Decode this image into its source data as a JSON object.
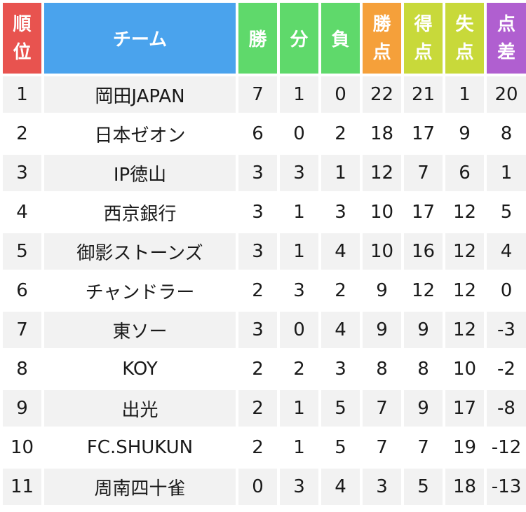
{
  "headers": {
    "rank": [
      "順",
      "位"
    ],
    "team": "チーム",
    "wins": "勝",
    "draws": "分",
    "losses": "負",
    "points": [
      "勝",
      "点"
    ],
    "goals_for": [
      "得",
      "点"
    ],
    "goals_against": [
      "失",
      "点"
    ],
    "goal_diff": [
      "点",
      "差"
    ]
  },
  "colors": {
    "rank": "#e8534f",
    "team": "#4aa3ed",
    "record": "#5fd96b",
    "points": "#f5a03a",
    "goals": "#c8d93a",
    "diff": "#b05fd0"
  },
  "rows": [
    {
      "rank": "1",
      "team": "岡田JAPAN",
      "w": "7",
      "d": "1",
      "l": "0",
      "pts": "22",
      "gf": "21",
      "ga": "1",
      "gd": "20"
    },
    {
      "rank": "2",
      "team": "日本ゼオン",
      "w": "6",
      "d": "0",
      "l": "2",
      "pts": "18",
      "gf": "17",
      "ga": "9",
      "gd": "8"
    },
    {
      "rank": "3",
      "team": "IP徳山",
      "w": "3",
      "d": "3",
      "l": "1",
      "pts": "12",
      "gf": "7",
      "ga": "6",
      "gd": "1"
    },
    {
      "rank": "4",
      "team": "西京銀行",
      "w": "3",
      "d": "1",
      "l": "3",
      "pts": "10",
      "gf": "17",
      "ga": "12",
      "gd": "5"
    },
    {
      "rank": "5",
      "team": "御影ストーンズ",
      "w": "3",
      "d": "1",
      "l": "4",
      "pts": "10",
      "gf": "16",
      "ga": "12",
      "gd": "4"
    },
    {
      "rank": "6",
      "team": "チャンドラー",
      "w": "2",
      "d": "3",
      "l": "2",
      "pts": "9",
      "gf": "12",
      "ga": "12",
      "gd": "0"
    },
    {
      "rank": "7",
      "team": "東ソー",
      "w": "3",
      "d": "0",
      "l": "4",
      "pts": "9",
      "gf": "9",
      "ga": "12",
      "gd": "-3"
    },
    {
      "rank": "8",
      "team": "KOY",
      "w": "2",
      "d": "2",
      "l": "3",
      "pts": "8",
      "gf": "8",
      "ga": "10",
      "gd": "-2"
    },
    {
      "rank": "9",
      "team": "出光",
      "w": "2",
      "d": "1",
      "l": "5",
      "pts": "7",
      "gf": "9",
      "ga": "17",
      "gd": "-8"
    },
    {
      "rank": "10",
      "team": "FC.SHUKUN",
      "w": "2",
      "d": "1",
      "l": "5",
      "pts": "7",
      "gf": "7",
      "ga": "19",
      "gd": "-12"
    },
    {
      "rank": "11",
      "team": "周南四十雀",
      "w": "0",
      "d": "3",
      "l": "4",
      "pts": "3",
      "gf": "5",
      "ga": "18",
      "gd": "-13"
    }
  ]
}
